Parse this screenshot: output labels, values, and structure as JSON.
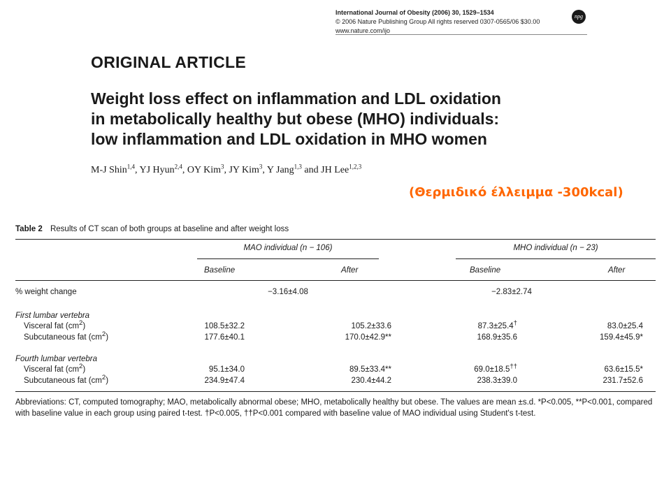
{
  "journal": {
    "line1": "International Journal of Obesity (2006) 30, 1529–1534",
    "line2": "© 2006 Nature Publishing Group  All rights reserved  0307-0565/06  $30.00",
    "line3": "www.nature.com/ijo",
    "logo": "npg"
  },
  "article_type": "ORIGINAL ARTICLE",
  "title_lines": [
    "Weight loss effect on inflammation and LDL oxidation",
    "in metabolically healthy but obese (MHO) individuals:",
    "low inflammation and LDL oxidation in MHO women"
  ],
  "authors": [
    {
      "name": "M-J Shin",
      "aff": "1,4"
    },
    {
      "name": "YJ Hyun",
      "aff": "2,4"
    },
    {
      "name": "OY Kim",
      "aff": "3"
    },
    {
      "name": "JY Kim",
      "aff": "3"
    },
    {
      "name": "Y Jang",
      "aff": "1,3"
    },
    {
      "name": "JH Lee",
      "aff": "1,2,3"
    }
  ],
  "annotation": "(Θερμιδικό έλλειμμα -300kcal)",
  "annotation_color": "#ff6600",
  "table": {
    "label": "Table 2",
    "caption": "Results of CT scan of both groups at baseline and after weight loss",
    "group1": "MAO individual (n − 106)",
    "group2": "MHO individual (n − 23)",
    "subheaders": [
      "Baseline",
      "After",
      "Baseline",
      "After"
    ],
    "weight_change": {
      "label": "% weight change",
      "mao": "−3.16±4.08",
      "mho": "−2.83±2.74"
    },
    "sections": [
      {
        "title": "First lumbar vertebra",
        "rows": [
          {
            "label": "Visceral fat (cm",
            "sup": "2",
            "tail": ")",
            "values": [
              "108.5±32.2",
              "105.2±33.6",
              "87.3±25.4",
              "83.0±25.4"
            ],
            "marks": [
              "",
              "",
              "†",
              ""
            ]
          },
          {
            "label": "Subcutaneous fat (cm",
            "sup": "2",
            "tail": ")",
            "values": [
              "177.6±40.1",
              "170.0±42.9",
              "168.9±35.6",
              "159.4±45.9"
            ],
            "marks": [
              "",
              "**",
              "",
              "*"
            ]
          }
        ]
      },
      {
        "title": "Fourth lumbar vertebra",
        "rows": [
          {
            "label": "Visceral fat (cm",
            "sup": "2",
            "tail": ")",
            "values": [
              "95.1±34.0",
              "89.5±33.4",
              "69.0±18.5",
              "63.6±15.5"
            ],
            "marks": [
              "",
              "**",
              "††",
              "*"
            ]
          },
          {
            "label": "Subcutaneous fat (cm",
            "sup": "2",
            "tail": ")",
            "values": [
              "234.9±47.4",
              "230.4±44.2",
              "238.3±39.0",
              "231.7±52.6"
            ],
            "marks": [
              "",
              "",
              "",
              ""
            ]
          }
        ]
      }
    ],
    "footnote": "Abbreviations: CT, computed tomography; MAO, metabolically abnormal obese; MHO, metabolically healthy but obese. The values are mean ±s.d. *P<0.005, **P<0.001, compared with baseline value in each group using paired t-test. †P<0.005, ††P<0.001 compared with baseline value of MAO individual using Student's t-test."
  }
}
